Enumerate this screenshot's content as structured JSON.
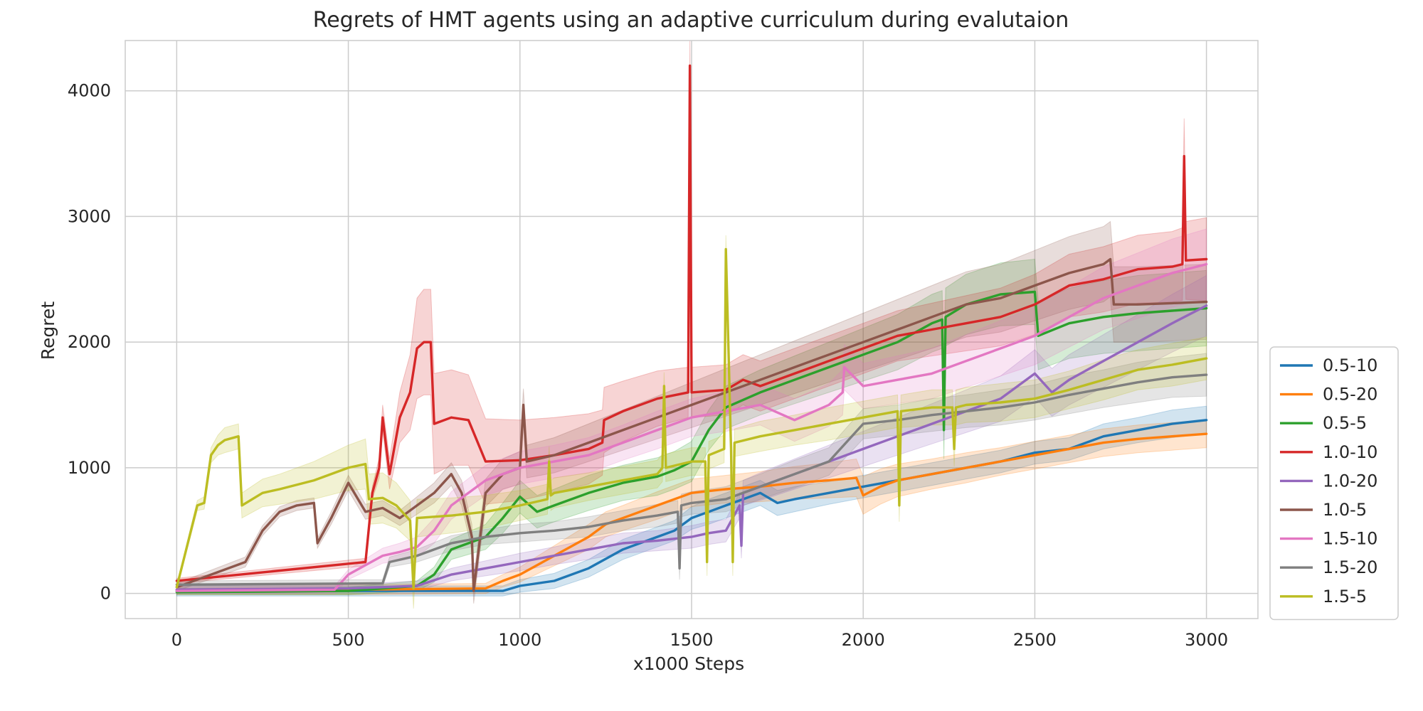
{
  "chart_data": {
    "type": "line",
    "title": "Regrets of HMT agents using an adaptive curriculum during evalutaion",
    "xlabel": "x1000 Steps",
    "ylabel": "Regret",
    "xlim": [
      -150,
      3150
    ],
    "ylim": [
      -200,
      4400
    ],
    "xticks": [
      0,
      500,
      1000,
      1500,
      2000,
      2500,
      3000
    ],
    "yticks": [
      0,
      1000,
      2000,
      3000,
      4000
    ],
    "xtick_labels": [
      "0",
      "500",
      "1000",
      "1500",
      "2000",
      "2500",
      "3000"
    ],
    "ytick_labels": [
      "0",
      "1000",
      "2000",
      "3000",
      "4000"
    ],
    "grid": true,
    "legend_position": "lower-right-outside",
    "series": [
      {
        "name": "0.5-10",
        "color": "#1f77b4",
        "x": [
          0,
          500,
          950,
          1000,
          1100,
          1200,
          1300,
          1400,
          1450,
          1500,
          1550,
          1600,
          1650,
          1700,
          1750,
          1800,
          1900,
          2000,
          2100,
          2200,
          2300,
          2400,
          2500,
          2600,
          2700,
          2800,
          2900,
          3000
        ],
        "y": [
          20,
          20,
          20,
          60,
          100,
          200,
          350,
          450,
          500,
          600,
          650,
          700,
          750,
          800,
          720,
          750,
          800,
          850,
          900,
          950,
          1000,
          1050,
          1120,
          1150,
          1250,
          1300,
          1350,
          1380
        ],
        "band": [
          40,
          40,
          40,
          50,
          60,
          70,
          80,
          80,
          80,
          90,
          100,
          100,
          100,
          100,
          100,
          100,
          90,
          90,
          90,
          90,
          90,
          90,
          90,
          90,
          100,
          100,
          110,
          110
        ]
      },
      {
        "name": "0.5-20",
        "color": "#ff7f0e",
        "x": [
          0,
          500,
          900,
          950,
          1000,
          1100,
          1200,
          1250,
          1300,
          1400,
          1500,
          1600,
          1700,
          1800,
          1900,
          1980,
          2000,
          2050,
          2100,
          2200,
          2300,
          2400,
          2500,
          2600,
          2700,
          2800,
          2900,
          3000
        ],
        "y": [
          30,
          30,
          40,
          100,
          150,
          300,
          450,
          550,
          600,
          700,
          800,
          830,
          850,
          880,
          900,
          920,
          780,
          850,
          900,
          950,
          1000,
          1050,
          1100,
          1150,
          1200,
          1230,
          1250,
          1270
        ],
        "band": [
          40,
          40,
          40,
          50,
          60,
          80,
          100,
          100,
          100,
          110,
          110,
          110,
          120,
          130,
          140,
          150,
          150,
          140,
          130,
          120,
          120,
          110,
          110,
          110,
          110,
          110,
          110,
          110
        ]
      },
      {
        "name": "0.5-5",
        "color": "#2ca02c",
        "x": [
          0,
          500,
          700,
          750,
          800,
          850,
          900,
          950,
          1000,
          1050,
          1100,
          1200,
          1300,
          1400,
          1450,
          1500,
          1550,
          1600,
          1700,
          1800,
          1900,
          2000,
          2100,
          2200,
          2230,
          2235,
          2240,
          2300,
          2400,
          2500,
          2510,
          2600,
          2700,
          2800,
          2900,
          3000
        ],
        "y": [
          10,
          20,
          60,
          150,
          350,
          400,
          450,
          600,
          770,
          650,
          700,
          800,
          880,
          930,
          980,
          1050,
          1300,
          1480,
          1600,
          1700,
          1800,
          1900,
          2000,
          2150,
          2180,
          1300,
          2200,
          2300,
          2380,
          2400,
          2050,
          2150,
          2200,
          2230,
          2250,
          2270
        ],
        "band": [
          20,
          30,
          40,
          60,
          80,
          90,
          100,
          120,
          130,
          130,
          130,
          140,
          140,
          150,
          150,
          160,
          160,
          170,
          180,
          190,
          200,
          210,
          220,
          230,
          230,
          230,
          230,
          240,
          250,
          260,
          270,
          280,
          290,
          300,
          300,
          300
        ]
      },
      {
        "name": "1.0-10",
        "color": "#d62728",
        "x": [
          0,
          550,
          570,
          590,
          600,
          620,
          650,
          680,
          700,
          720,
          740,
          750,
          800,
          850,
          900,
          1000,
          1100,
          1200,
          1240,
          1245,
          1300,
          1400,
          1490,
          1495,
          1500,
          1600,
          1650,
          1700,
          1800,
          1900,
          2000,
          2100,
          2200,
          2300,
          2400,
          2500,
          2600,
          2700,
          2800,
          2900,
          2930,
          2935,
          2940,
          3000
        ],
        "y": [
          100,
          250,
          800,
          1000,
          1400,
          950,
          1400,
          1600,
          1950,
          2000,
          2000,
          1350,
          1400,
          1380,
          1050,
          1060,
          1100,
          1150,
          1200,
          1380,
          1450,
          1550,
          1600,
          4200,
          1600,
          1620,
          1700,
          1650,
          1750,
          1850,
          1950,
          2050,
          2100,
          2150,
          2200,
          2300,
          2450,
          2500,
          2580,
          2600,
          2620,
          3480,
          2650,
          2660
        ],
        "band": [
          20,
          30,
          50,
          80,
          100,
          120,
          200,
          300,
          400,
          420,
          420,
          400,
          380,
          360,
          340,
          320,
          300,
          280,
          260,
          260,
          240,
          220,
          200,
          200,
          200,
          200,
          200,
          200,
          200,
          200,
          200,
          200,
          210,
          220,
          230,
          240,
          250,
          260,
          270,
          280,
          290,
          300,
          310,
          330
        ]
      },
      {
        "name": "1.0-20",
        "color": "#9467bd",
        "x": [
          0,
          500,
          700,
          800,
          900,
          1000,
          1100,
          1200,
          1300,
          1400,
          1500,
          1550,
          1600,
          1640,
          1645,
          1650,
          1700,
          1800,
          1900,
          2000,
          2100,
          2200,
          2300,
          2400,
          2500,
          2550,
          2600,
          2700,
          2800,
          2900,
          3000
        ],
        "y": [
          30,
          40,
          60,
          150,
          200,
          250,
          300,
          350,
          400,
          420,
          450,
          480,
          500,
          700,
          380,
          800,
          850,
          950,
          1050,
          1150,
          1250,
          1350,
          1450,
          1550,
          1750,
          1600,
          1700,
          1850,
          2000,
          2150,
          2290
        ],
        "band": [
          30,
          30,
          40,
          50,
          60,
          70,
          70,
          80,
          80,
          80,
          90,
          90,
          90,
          100,
          100,
          100,
          110,
          120,
          130,
          140,
          150,
          160,
          170,
          180,
          190,
          190,
          200,
          210,
          220,
          230,
          240
        ]
      },
      {
        "name": "1.0-5",
        "color": "#8c564b",
        "x": [
          0,
          200,
          250,
          300,
          350,
          400,
          410,
          420,
          450,
          500,
          550,
          600,
          650,
          700,
          750,
          800,
          830,
          860,
          865,
          900,
          950,
          1000,
          1010,
          1020,
          1100,
          1200,
          1300,
          1400,
          1500,
          1600,
          1700,
          1800,
          1900,
          2000,
          2100,
          2200,
          2300,
          2400,
          2500,
          2600,
          2700,
          2720,
          2730,
          2800,
          2900,
          3000
        ],
        "y": [
          50,
          250,
          500,
          650,
          700,
          720,
          400,
          450,
          600,
          880,
          650,
          680,
          600,
          700,
          800,
          950,
          800,
          450,
          20,
          800,
          950,
          1000,
          1500,
          1050,
          1100,
          1200,
          1300,
          1400,
          1500,
          1600,
          1700,
          1800,
          1900,
          2000,
          2100,
          2200,
          2300,
          2350,
          2450,
          2550,
          2620,
          2660,
          2300,
          2300,
          2310,
          2320
        ],
        "band": [
          30,
          40,
          40,
          40,
          40,
          40,
          40,
          40,
          50,
          60,
          60,
          60,
          60,
          70,
          80,
          90,
          100,
          100,
          100,
          110,
          120,
          130,
          130,
          130,
          140,
          150,
          160,
          170,
          180,
          190,
          200,
          210,
          220,
          230,
          240,
          250,
          260,
          270,
          280,
          290,
          300,
          300,
          300,
          300,
          300,
          300
        ]
      },
      {
        "name": "1.5-10",
        "color": "#e377c2",
        "x": [
          0,
          460,
          500,
          600,
          650,
          700,
          750,
          800,
          900,
          1000,
          1100,
          1200,
          1300,
          1400,
          1500,
          1600,
          1700,
          1800,
          1900,
          1940,
          1945,
          2000,
          2100,
          2200,
          2300,
          2400,
          2500,
          2600,
          2700,
          2800,
          2900,
          3000
        ],
        "y": [
          20,
          30,
          150,
          300,
          330,
          370,
          500,
          700,
          900,
          1000,
          1050,
          1100,
          1200,
          1300,
          1400,
          1450,
          1500,
          1380,
          1500,
          1600,
          1800,
          1650,
          1700,
          1750,
          1850,
          1950,
          2050,
          2200,
          2350,
          2450,
          2550,
          2620
        ],
        "band": [
          20,
          30,
          40,
          60,
          70,
          80,
          100,
          110,
          120,
          130,
          130,
          140,
          140,
          150,
          150,
          160,
          160,
          170,
          170,
          180,
          180,
          180,
          190,
          200,
          210,
          220,
          230,
          240,
          250,
          260,
          270,
          280
        ]
      },
      {
        "name": "1.5-20",
        "color": "#7f7f7f",
        "x": [
          0,
          600,
          620,
          700,
          800,
          900,
          1000,
          1100,
          1200,
          1300,
          1400,
          1460,
          1465,
          1470,
          1500,
          1600,
          1700,
          1800,
          1900,
          2000,
          2100,
          2200,
          2300,
          2400,
          2500,
          2600,
          2700,
          2800,
          2900,
          3000
        ],
        "y": [
          70,
          80,
          250,
          300,
          400,
          450,
          480,
          500,
          530,
          580,
          620,
          650,
          200,
          700,
          720,
          750,
          850,
          950,
          1050,
          1350,
          1380,
          1420,
          1450,
          1480,
          1520,
          1580,
          1630,
          1680,
          1720,
          1740
        ],
        "band": [
          30,
          30,
          40,
          50,
          60,
          60,
          70,
          70,
          80,
          80,
          90,
          90,
          90,
          90,
          90,
          100,
          100,
          110,
          110,
          120,
          120,
          130,
          130,
          140,
          140,
          150,
          150,
          160,
          160,
          170
        ]
      },
      {
        "name": "1.5-5",
        "color": "#bcbd22",
        "x": [
          0,
          60,
          80,
          100,
          120,
          140,
          180,
          190,
          250,
          300,
          400,
          500,
          550,
          560,
          600,
          640,
          680,
          690,
          700,
          800,
          900,
          1000,
          1080,
          1085,
          1090,
          1100,
          1200,
          1300,
          1400,
          1415,
          1420,
          1425,
          1500,
          1540,
          1545,
          1550,
          1595,
          1600,
          1615,
          1620,
          1625,
          1700,
          1800,
          1900,
          2000,
          2100,
          2105,
          2110,
          2200,
          2260,
          2265,
          2270,
          2300,
          2400,
          2500,
          2600,
          2700,
          2800,
          2900,
          3000
        ],
        "y": [
          50,
          700,
          720,
          1100,
          1180,
          1220,
          1250,
          700,
          800,
          830,
          900,
          1000,
          1030,
          750,
          760,
          700,
          580,
          40,
          600,
          620,
          650,
          700,
          750,
          1050,
          780,
          800,
          850,
          900,
          950,
          1000,
          1650,
          1000,
          1050,
          1050,
          250,
          1100,
          1150,
          2740,
          1150,
          250,
          1200,
          1250,
          1300,
          1350,
          1400,
          1450,
          700,
          1450,
          1480,
          1480,
          1150,
          1480,
          1500,
          1520,
          1550,
          1620,
          1700,
          1780,
          1820,
          1870
        ],
        "band": [
          20,
          40,
          50,
          60,
          80,
          100,
          100,
          100,
          110,
          120,
          150,
          180,
          200,
          200,
          200,
          180,
          160,
          160,
          150,
          140,
          130,
          120,
          120,
          120,
          120,
          120,
          110,
          110,
          110,
          110,
          110,
          110,
          110,
          110,
          110,
          110,
          110,
          110,
          110,
          110,
          110,
          120,
          120,
          130,
          130,
          130,
          130,
          130,
          140,
          140,
          140,
          140,
          140,
          150,
          150,
          150,
          160,
          160,
          170,
          170
        ]
      }
    ]
  }
}
